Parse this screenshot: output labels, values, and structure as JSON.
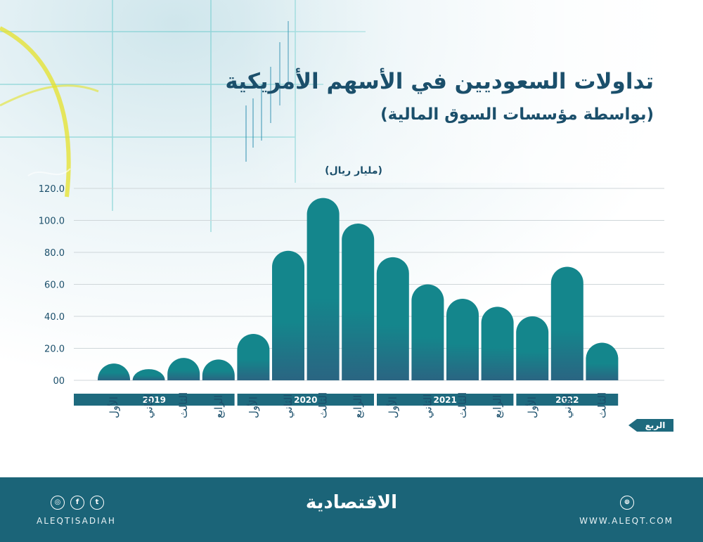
{
  "title": "تداولات السعوديين في الأسهم الأمريكية",
  "subtitle": "(بواسطة مؤسسات السوق المالية)",
  "unit_label": "(مليار ريال)",
  "footer": {
    "left_handle": "ALEQTISADIAH",
    "right_url": "WWW.ALEQT.COM",
    "logo": "الاقتصادية",
    "icons": [
      "instagram-icon",
      "facebook-icon",
      "twitter-icon",
      "dribbble-icon"
    ]
  },
  "colors": {
    "bar_top": "#14868c",
    "bar_bottom": "#2a6582",
    "year_band": "#1e6a7e",
    "title": "#1b4f6b",
    "footer": "#1b6478"
  },
  "chart_data": {
    "type": "bar",
    "title": "تداولات السعوديين في الأسهم الأمريكية",
    "subtitle": "(بواسطة مؤسسات السوق المالية)",
    "ylabel": "(مليار ريال)",
    "xlabel": "الربع",
    "ylim": [
      0,
      120
    ],
    "yticks": [
      "00",
      "20.0",
      "40.0",
      "60.0",
      "80.0",
      "100.0",
      "120.0"
    ],
    "grid": true,
    "categories": [
      "الأول",
      "الثاني",
      "الثالث",
      "الرابع",
      "الأول",
      "الثاني",
      "الثالث",
      "الرابع",
      "الأول",
      "الثاني",
      "الثالث",
      "الرابع",
      "الأول",
      "الثاني",
      "الثالث"
    ],
    "years": [
      {
        "label": "2019",
        "quarters": 4
      },
      {
        "label": "2020",
        "quarters": 4
      },
      {
        "label": "2021",
        "quarters": 4
      },
      {
        "label": "2022",
        "quarters": 3
      }
    ],
    "values": [
      10.5,
      7.0,
      14.0,
      13.0,
      29.0,
      81.0,
      114.0,
      98.0,
      77.0,
      60.0,
      51.0,
      46.0,
      40.0,
      71.0,
      23.5
    ]
  }
}
